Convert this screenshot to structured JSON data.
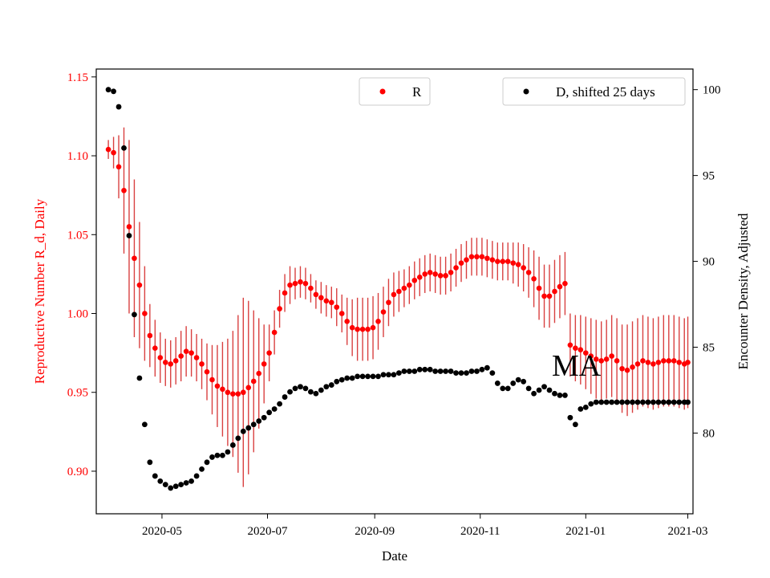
{
  "chart_data": {
    "type": "scatter",
    "title": "",
    "annotation": "MA",
    "xlabel": "Date",
    "ylabel_left": "Reproductive Number R_d, Daily",
    "ylabel_right": "Encounter Density, Adjusted",
    "x_ticks": [
      "2020-05",
      "2020-07",
      "2020-09",
      "2020-11",
      "2021-01",
      "2021-03"
    ],
    "x_tick_dates": [
      "2020-05-01",
      "2020-07-01",
      "2020-09-01",
      "2020-11-01",
      "2021-01-01",
      "2021-03-01"
    ],
    "xlim": [
      "2020-03-24",
      "2021-03-04"
    ],
    "ylim_left": [
      0.873,
      1.155
    ],
    "ylim_right": [
      75.3,
      101.2
    ],
    "yticks_left": [
      "0.90",
      "0.95",
      "1.00",
      "1.05",
      "1.10",
      "1.15"
    ],
    "yticks_right": [
      "80",
      "85",
      "90",
      "95",
      "100"
    ],
    "colors": {
      "R": "#ff0000",
      "R_err": "#cc0000",
      "D": "#000000",
      "left_axis": "#ff0000",
      "right_axis": "#000000"
    },
    "legend": [
      {
        "label": "R",
        "color": "#ff0000",
        "placement": "top-center"
      },
      {
        "label": "D, shifted 25 days",
        "color": "#000000",
        "placement": "top-right"
      }
    ],
    "series": [
      {
        "name": "R",
        "axis": "left",
        "marker": "dot",
        "error_bars": true,
        "points": [
          [
            "2020-03-31",
            1.104,
            0.006
          ],
          [
            "2020-04-03",
            1.102,
            0.01
          ],
          [
            "2020-04-06",
            1.093,
            0.02
          ],
          [
            "2020-04-09",
            1.078,
            0.04
          ],
          [
            "2020-04-12",
            1.055,
            0.055
          ],
          [
            "2020-04-15",
            1.035,
            0.05
          ],
          [
            "2020-04-18",
            1.018,
            0.04
          ],
          [
            "2020-04-21",
            1.0,
            0.03
          ],
          [
            "2020-04-24",
            0.986,
            0.02
          ],
          [
            "2020-04-27",
            0.978,
            0.018
          ],
          [
            "2020-04-30",
            0.972,
            0.016
          ],
          [
            "2020-05-03",
            0.969,
            0.015
          ],
          [
            "2020-05-06",
            0.968,
            0.015
          ],
          [
            "2020-05-09",
            0.97,
            0.015
          ],
          [
            "2020-05-12",
            0.973,
            0.016
          ],
          [
            "2020-05-15",
            0.976,
            0.016
          ],
          [
            "2020-05-18",
            0.975,
            0.015
          ],
          [
            "2020-05-21",
            0.972,
            0.015
          ],
          [
            "2020-05-24",
            0.968,
            0.016
          ],
          [
            "2020-05-27",
            0.963,
            0.018
          ],
          [
            "2020-05-30",
            0.958,
            0.022
          ],
          [
            "2020-06-02",
            0.954,
            0.026
          ],
          [
            "2020-06-05",
            0.952,
            0.03
          ],
          [
            "2020-06-08",
            0.95,
            0.034
          ],
          [
            "2020-06-11",
            0.949,
            0.04
          ],
          [
            "2020-06-14",
            0.949,
            0.05
          ],
          [
            "2020-06-17",
            0.95,
            0.06
          ],
          [
            "2020-06-20",
            0.953,
            0.055
          ],
          [
            "2020-06-23",
            0.957,
            0.045
          ],
          [
            "2020-06-26",
            0.962,
            0.035
          ],
          [
            "2020-06-29",
            0.968,
            0.025
          ],
          [
            "2020-07-02",
            0.975,
            0.018
          ],
          [
            "2020-07-05",
            0.988,
            0.014
          ],
          [
            "2020-07-08",
            1.003,
            0.012
          ],
          [
            "2020-07-11",
            1.013,
            0.012
          ],
          [
            "2020-07-14",
            1.018,
            0.012
          ],
          [
            "2020-07-17",
            1.019,
            0.01
          ],
          [
            "2020-07-20",
            1.02,
            0.01
          ],
          [
            "2020-07-23",
            1.019,
            0.01
          ],
          [
            "2020-07-26",
            1.016,
            0.009
          ],
          [
            "2020-07-29",
            1.012,
            0.009
          ],
          [
            "2020-08-01",
            1.01,
            0.01
          ],
          [
            "2020-08-04",
            1.008,
            0.01
          ],
          [
            "2020-08-07",
            1.007,
            0.01
          ],
          [
            "2020-08-10",
            1.004,
            0.012
          ],
          [
            "2020-08-13",
            1.0,
            0.012
          ],
          [
            "2020-08-16",
            0.995,
            0.015
          ],
          [
            "2020-08-19",
            0.991,
            0.018
          ],
          [
            "2020-08-22",
            0.99,
            0.02
          ],
          [
            "2020-08-25",
            0.99,
            0.02
          ],
          [
            "2020-08-28",
            0.99,
            0.02
          ],
          [
            "2020-08-31",
            0.991,
            0.02
          ],
          [
            "2020-09-03",
            0.995,
            0.018
          ],
          [
            "2020-09-06",
            1.001,
            0.016
          ],
          [
            "2020-09-09",
            1.007,
            0.015
          ],
          [
            "2020-09-12",
            1.012,
            0.014
          ],
          [
            "2020-09-15",
            1.014,
            0.013
          ],
          [
            "2020-09-18",
            1.016,
            0.012
          ],
          [
            "2020-09-21",
            1.018,
            0.012
          ],
          [
            "2020-09-24",
            1.021,
            0.012
          ],
          [
            "2020-09-27",
            1.023,
            0.012
          ],
          [
            "2020-09-30",
            1.025,
            0.012
          ],
          [
            "2020-10-03",
            1.026,
            0.012
          ],
          [
            "2020-10-06",
            1.025,
            0.012
          ],
          [
            "2020-10-09",
            1.024,
            0.012
          ],
          [
            "2020-10-12",
            1.024,
            0.012
          ],
          [
            "2020-10-15",
            1.026,
            0.012
          ],
          [
            "2020-10-18",
            1.029,
            0.012
          ],
          [
            "2020-10-21",
            1.032,
            0.012
          ],
          [
            "2020-10-24",
            1.034,
            0.012
          ],
          [
            "2020-10-27",
            1.036,
            0.012
          ],
          [
            "2020-10-30",
            1.036,
            0.012
          ],
          [
            "2020-11-02",
            1.036,
            0.012
          ],
          [
            "2020-11-05",
            1.035,
            0.012
          ],
          [
            "2020-11-08",
            1.034,
            0.012
          ],
          [
            "2020-11-11",
            1.033,
            0.012
          ],
          [
            "2020-11-14",
            1.033,
            0.012
          ],
          [
            "2020-11-17",
            1.033,
            0.012
          ],
          [
            "2020-11-20",
            1.032,
            0.013
          ],
          [
            "2020-11-23",
            1.031,
            0.014
          ],
          [
            "2020-11-26",
            1.029,
            0.015
          ],
          [
            "2020-11-29",
            1.026,
            0.016
          ],
          [
            "2020-12-02",
            1.022,
            0.018
          ],
          [
            "2020-12-05",
            1.016,
            0.02
          ],
          [
            "2020-12-08",
            1.011,
            0.02
          ],
          [
            "2020-12-11",
            1.011,
            0.02
          ],
          [
            "2020-12-14",
            1.014,
            0.02
          ],
          [
            "2020-12-17",
            1.017,
            0.02
          ],
          [
            "2020-12-20",
            1.019,
            0.02
          ],
          [
            "2020-12-23",
            0.98,
            0.02
          ],
          [
            "2020-12-26",
            0.978,
            0.021
          ],
          [
            "2020-12-29",
            0.977,
            0.022
          ],
          [
            "2021-01-01",
            0.975,
            0.023
          ],
          [
            "2021-01-04",
            0.973,
            0.024
          ],
          [
            "2021-01-07",
            0.971,
            0.025
          ],
          [
            "2021-01-10",
            0.97,
            0.025
          ],
          [
            "2021-01-13",
            0.971,
            0.025
          ],
          [
            "2021-01-16",
            0.973,
            0.026
          ],
          [
            "2021-01-19",
            0.97,
            0.027
          ],
          [
            "2021-01-22",
            0.965,
            0.028
          ],
          [
            "2021-01-25",
            0.964,
            0.029
          ],
          [
            "2021-01-28",
            0.966,
            0.029
          ],
          [
            "2021-01-31",
            0.968,
            0.029
          ],
          [
            "2021-02-03",
            0.97,
            0.029
          ],
          [
            "2021-02-06",
            0.969,
            0.029
          ],
          [
            "2021-02-09",
            0.968,
            0.029
          ],
          [
            "2021-02-12",
            0.969,
            0.029
          ],
          [
            "2021-02-15",
            0.97,
            0.029
          ],
          [
            "2021-02-18",
            0.97,
            0.029
          ],
          [
            "2021-02-21",
            0.97,
            0.029
          ],
          [
            "2021-02-24",
            0.969,
            0.029
          ],
          [
            "2021-02-27",
            0.968,
            0.029
          ],
          [
            "2021-03-01",
            0.969,
            0.029
          ]
        ]
      },
      {
        "name": "D, shifted 25 days",
        "axis": "right",
        "marker": "dot",
        "points": [
          [
            "2020-03-31",
            100.0
          ],
          [
            "2020-04-03",
            99.9
          ],
          [
            "2020-04-06",
            99.0
          ],
          [
            "2020-04-09",
            96.6
          ],
          [
            "2020-04-12",
            91.5
          ],
          [
            "2020-04-15",
            86.9
          ],
          [
            "2020-04-18",
            83.2
          ],
          [
            "2020-04-21",
            80.5
          ],
          [
            "2020-04-24",
            78.3
          ],
          [
            "2020-04-27",
            77.5
          ],
          [
            "2020-04-30",
            77.2
          ],
          [
            "2020-05-03",
            77.0
          ],
          [
            "2020-05-06",
            76.8
          ],
          [
            "2020-05-09",
            76.9
          ],
          [
            "2020-05-12",
            77.0
          ],
          [
            "2020-05-15",
            77.1
          ],
          [
            "2020-05-18",
            77.2
          ],
          [
            "2020-05-21",
            77.5
          ],
          [
            "2020-05-24",
            77.9
          ],
          [
            "2020-05-27",
            78.3
          ],
          [
            "2020-05-30",
            78.6
          ],
          [
            "2020-06-02",
            78.7
          ],
          [
            "2020-06-05",
            78.7
          ],
          [
            "2020-06-08",
            78.9
          ],
          [
            "2020-06-11",
            79.3
          ],
          [
            "2020-06-14",
            79.7
          ],
          [
            "2020-06-17",
            80.1
          ],
          [
            "2020-06-20",
            80.3
          ],
          [
            "2020-06-23",
            80.5
          ],
          [
            "2020-06-26",
            80.7
          ],
          [
            "2020-06-29",
            80.9
          ],
          [
            "2020-07-02",
            81.2
          ],
          [
            "2020-07-05",
            81.4
          ],
          [
            "2020-07-08",
            81.7
          ],
          [
            "2020-07-11",
            82.1
          ],
          [
            "2020-07-14",
            82.4
          ],
          [
            "2020-07-17",
            82.6
          ],
          [
            "2020-07-20",
            82.7
          ],
          [
            "2020-07-23",
            82.6
          ],
          [
            "2020-07-26",
            82.4
          ],
          [
            "2020-07-29",
            82.3
          ],
          [
            "2020-08-01",
            82.5
          ],
          [
            "2020-08-04",
            82.7
          ],
          [
            "2020-08-07",
            82.8
          ],
          [
            "2020-08-10",
            83.0
          ],
          [
            "2020-08-13",
            83.1
          ],
          [
            "2020-08-16",
            83.2
          ],
          [
            "2020-08-19",
            83.2
          ],
          [
            "2020-08-22",
            83.3
          ],
          [
            "2020-08-25",
            83.3
          ],
          [
            "2020-08-28",
            83.3
          ],
          [
            "2020-08-31",
            83.3
          ],
          [
            "2020-09-03",
            83.3
          ],
          [
            "2020-09-06",
            83.4
          ],
          [
            "2020-09-09",
            83.4
          ],
          [
            "2020-09-12",
            83.4
          ],
          [
            "2020-09-15",
            83.5
          ],
          [
            "2020-09-18",
            83.6
          ],
          [
            "2020-09-21",
            83.6
          ],
          [
            "2020-09-24",
            83.6
          ],
          [
            "2020-09-27",
            83.7
          ],
          [
            "2020-09-30",
            83.7
          ],
          [
            "2020-10-03",
            83.7
          ],
          [
            "2020-10-06",
            83.6
          ],
          [
            "2020-10-09",
            83.6
          ],
          [
            "2020-10-12",
            83.6
          ],
          [
            "2020-10-15",
            83.6
          ],
          [
            "2020-10-18",
            83.5
          ],
          [
            "2020-10-21",
            83.5
          ],
          [
            "2020-10-24",
            83.5
          ],
          [
            "2020-10-27",
            83.6
          ],
          [
            "2020-10-30",
            83.6
          ],
          [
            "2020-11-02",
            83.7
          ],
          [
            "2020-11-05",
            83.8
          ],
          [
            "2020-11-08",
            83.5
          ],
          [
            "2020-11-11",
            82.9
          ],
          [
            "2020-11-14",
            82.6
          ],
          [
            "2020-11-17",
            82.6
          ],
          [
            "2020-11-20",
            82.9
          ],
          [
            "2020-11-23",
            83.1
          ],
          [
            "2020-11-26",
            83.0
          ],
          [
            "2020-11-29",
            82.6
          ],
          [
            "2020-12-02",
            82.3
          ],
          [
            "2020-12-05",
            82.5
          ],
          [
            "2020-12-08",
            82.7
          ],
          [
            "2020-12-11",
            82.5
          ],
          [
            "2020-12-14",
            82.3
          ],
          [
            "2020-12-17",
            82.2
          ],
          [
            "2020-12-20",
            82.2
          ],
          [
            "2020-12-23",
            80.9
          ],
          [
            "2020-12-26",
            80.5
          ],
          [
            "2020-12-29",
            81.4
          ],
          [
            "2021-01-01",
            81.5
          ],
          [
            "2021-01-04",
            81.7
          ],
          [
            "2021-01-07",
            81.8
          ],
          [
            "2021-01-10",
            81.8
          ],
          [
            "2021-01-13",
            81.8
          ],
          [
            "2021-01-16",
            81.8
          ],
          [
            "2021-01-19",
            81.8
          ],
          [
            "2021-01-22",
            81.8
          ],
          [
            "2021-01-25",
            81.8
          ],
          [
            "2021-01-28",
            81.8
          ],
          [
            "2021-01-31",
            81.8
          ],
          [
            "2021-02-03",
            81.8
          ],
          [
            "2021-02-06",
            81.8
          ],
          [
            "2021-02-09",
            81.8
          ],
          [
            "2021-02-12",
            81.8
          ],
          [
            "2021-02-15",
            81.8
          ],
          [
            "2021-02-18",
            81.8
          ],
          [
            "2021-02-21",
            81.8
          ],
          [
            "2021-02-24",
            81.8
          ],
          [
            "2021-02-27",
            81.8
          ],
          [
            "2021-03-01",
            81.8
          ]
        ]
      }
    ]
  }
}
